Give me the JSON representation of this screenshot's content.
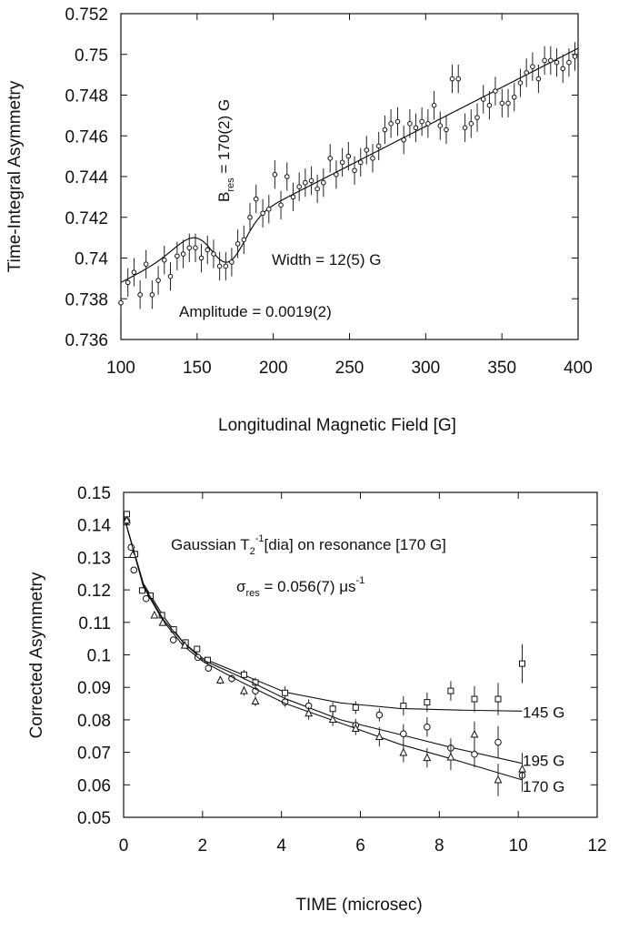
{
  "chart_data": [
    {
      "type": "scatter",
      "xlabel": "Longitudinal Magnetic Field [G]",
      "ylabel": "Time-Integral Asymmetry",
      "xlim": [
        100,
        400
      ],
      "ylim": [
        0.736,
        0.752
      ],
      "xticks": [
        "100",
        "150",
        "200",
        "250",
        "300",
        "350",
        "400"
      ],
      "yticks": [
        "0.736",
        "0.738",
        "0.74",
        "0.742",
        "0.744",
        "0.746",
        "0.748",
        "0.75",
        "0.752"
      ],
      "grid": false,
      "annotations": {
        "bres_main": "B",
        "bres_sub": "res",
        "bres_rest": " = 170(2) G",
        "width": "Width = 12(5) G",
        "amplitude": "Amplitude = 0.0019(2)"
      },
      "fit": {
        "model": "linear background with resonance dip",
        "baseline": [
          [
            100,
            0.7388
          ],
          [
            400,
            0.7503
          ]
        ],
        "center": 170,
        "width": 12,
        "amplitude": 0.0019
      },
      "error": 0.0007,
      "points": [
        [
          100,
          0.7378
        ],
        [
          104.6,
          0.7388
        ],
        [
          108.6,
          0.7393
        ],
        [
          112.6,
          0.7382
        ],
        [
          116.5,
          0.7397
        ],
        [
          120.5,
          0.7382
        ],
        [
          124.5,
          0.7389
        ],
        [
          128.5,
          0.7399
        ],
        [
          132.5,
          0.7391
        ],
        [
          136.9,
          0.7401
        ],
        [
          140.9,
          0.7402
        ],
        [
          144.9,
          0.7405
        ],
        [
          148.9,
          0.7405
        ],
        [
          152.8,
          0.74
        ],
        [
          156.8,
          0.7404
        ],
        [
          160.8,
          0.7402
        ],
        [
          164.8,
          0.7396
        ],
        [
          168.8,
          0.7396
        ],
        [
          172.7,
          0.7398
        ],
        [
          176.7,
          0.7407
        ],
        [
          180.7,
          0.7409
        ],
        [
          184.7,
          0.742
        ],
        [
          188.7,
          0.7429
        ],
        [
          193.1,
          0.7422
        ],
        [
          197.1,
          0.7424
        ],
        [
          201,
          0.7441
        ],
        [
          205,
          0.7426
        ],
        [
          209,
          0.744
        ],
        [
          213,
          0.743
        ],
        [
          217,
          0.7435
        ],
        [
          221,
          0.7437
        ],
        [
          225,
          0.7438
        ],
        [
          228.9,
          0.7434
        ],
        [
          232.9,
          0.7437
        ],
        [
          237.3,
          0.7449
        ],
        [
          241.3,
          0.7441
        ],
        [
          245.3,
          0.7447
        ],
        [
          249.3,
          0.745
        ],
        [
          253.3,
          0.7443
        ],
        [
          257.3,
          0.7447
        ],
        [
          261.2,
          0.7453
        ],
        [
          265.2,
          0.7449
        ],
        [
          269.2,
          0.7455
        ],
        [
          273.2,
          0.7463
        ],
        [
          277.2,
          0.7466
        ],
        [
          281.6,
          0.7467
        ],
        [
          285.6,
          0.7458
        ],
        [
          289.6,
          0.7466
        ],
        [
          293.5,
          0.7464
        ],
        [
          297.5,
          0.7467
        ],
        [
          301.5,
          0.7466
        ],
        [
          305.5,
          0.7475
        ],
        [
          309.5,
          0.7465
        ],
        [
          313.5,
          0.7463
        ],
        [
          317.4,
          0.7488
        ],
        [
          321.4,
          0.7488
        ],
        [
          325.8,
          0.7464
        ],
        [
          329.8,
          0.7466
        ],
        [
          333.8,
          0.7469
        ],
        [
          337.8,
          0.7478
        ],
        [
          341.8,
          0.7475
        ],
        [
          345.7,
          0.7482
        ],
        [
          350.1,
          0.7476
        ],
        [
          354.1,
          0.7476
        ],
        [
          358.1,
          0.7479
        ],
        [
          362.1,
          0.7486
        ],
        [
          366.1,
          0.7491
        ],
        [
          370.1,
          0.7494
        ],
        [
          374,
          0.7488
        ],
        [
          378,
          0.7497
        ],
        [
          382,
          0.7497
        ],
        [
          386,
          0.7496
        ],
        [
          390,
          0.7493
        ],
        [
          394,
          0.7496
        ],
        [
          397.9,
          0.7499
        ]
      ]
    },
    {
      "type": "scatter",
      "xlabel": "TIME (microsec)",
      "ylabel": "Corrected Asymmetry",
      "xlim": [
        0,
        12
      ],
      "ylim": [
        0.05,
        0.15
      ],
      "xticks": [
        "0",
        "2",
        "4",
        "6",
        "8",
        "10",
        "12"
      ],
      "yticks": [
        "0.05",
        "0.06",
        "0.07",
        "0.08",
        "0.09",
        "0.1",
        "0.11",
        "0.12",
        "0.13",
        "0.14",
        "0.15"
      ],
      "grid": false,
      "annotations": {
        "title_a": "Gaussian T",
        "title_sub": "2",
        "title_sup": "-1",
        "title_b": "[dia] on resonance [170 G]",
        "sigma": "σ",
        "sigma_sub": "res",
        "sigma_rest": " = 0.056(7) μs",
        "sigma_sup": "-1"
      },
      "series": [
        {
          "name": "145 G",
          "marker": "square",
          "points": [
            [
              0.08,
              0.1433,
              0.001
            ],
            [
              0.29,
              0.131,
              0.001
            ],
            [
              0.47,
              0.1198,
              0.001
            ],
            [
              0.68,
              0.1182,
              0.001
            ],
            [
              0.97,
              0.1122,
              0.001
            ],
            [
              1.27,
              0.1078,
              0.001
            ],
            [
              1.57,
              0.1038,
              0.001
            ],
            [
              1.86,
              0.1018,
              0.001
            ],
            [
              2.13,
              0.0984,
              0.001
            ],
            [
              3.05,
              0.0939,
              0.0015
            ],
            [
              3.34,
              0.0915,
              0.0015
            ],
            [
              4.09,
              0.0883,
              0.002
            ],
            [
              5.3,
              0.0834,
              0.002
            ],
            [
              5.88,
              0.0838,
              0.002
            ],
            [
              7.09,
              0.0843,
              0.003
            ],
            [
              7.69,
              0.0854,
              0.003
            ],
            [
              8.29,
              0.0889,
              0.003
            ],
            [
              8.89,
              0.0864,
              0.004
            ],
            [
              9.49,
              0.0864,
              0.005
            ],
            [
              10.1,
              0.0973,
              0.006
            ]
          ],
          "fit": [
            [
              0,
              0.143
            ],
            [
              0.5,
              0.122
            ],
            [
              1,
              0.112
            ],
            [
              1.5,
              0.104
            ],
            [
              2,
              0.099
            ],
            [
              3,
              0.094
            ],
            [
              4.1,
              0.0885
            ],
            [
              5.5,
              0.0852
            ],
            [
              7,
              0.0835
            ],
            [
              8.5,
              0.083
            ],
            [
              10.1,
              0.0827
            ]
          ]
        },
        {
          "name": "195 G",
          "marker": "circle",
          "points": [
            [
              0.08,
              0.1412,
              0.001
            ],
            [
              0.19,
              0.1331,
              0.001
            ],
            [
              0.26,
              0.1261,
              0.001
            ],
            [
              0.57,
              0.1173,
              0.001
            ],
            [
              1.26,
              0.1046,
              0.001
            ],
            [
              1.88,
              0.0992,
              0.001
            ],
            [
              2.15,
              0.0959,
              0.001
            ],
            [
              2.74,
              0.0927,
              0.0012
            ],
            [
              3.34,
              0.0889,
              0.0015
            ],
            [
              4.09,
              0.0855,
              0.0015
            ],
            [
              4.69,
              0.0843,
              0.002
            ],
            [
              5.88,
              0.0783,
              0.002
            ],
            [
              6.48,
              0.0815,
              0.002
            ],
            [
              7.09,
              0.0757,
              0.003
            ],
            [
              7.69,
              0.0778,
              0.003
            ],
            [
              8.29,
              0.0713,
              0.003
            ],
            [
              8.89,
              0.0694,
              0.004
            ],
            [
              9.49,
              0.0731,
              0.005
            ],
            [
              10.1,
              0.0629,
              0.005
            ]
          ],
          "fit": [
            [
              0,
              0.143
            ],
            [
              0.5,
              0.1215
            ],
            [
              1,
              0.111
            ],
            [
              1.5,
              0.104
            ],
            [
              2,
              0.0985
            ],
            [
              3,
              0.093
            ],
            [
              4.1,
              0.0865
            ],
            [
              5.5,
              0.08
            ],
            [
              7,
              0.0755
            ],
            [
              8.3,
              0.0715
            ],
            [
              10.1,
              0.0666
            ]
          ]
        },
        {
          "name": "170 G",
          "marker": "triangle",
          "points": [
            [
              0.08,
              0.1414,
              0.001
            ],
            [
              0.23,
              0.1308,
              0.001
            ],
            [
              0.78,
              0.1122,
              0.001
            ],
            [
              0.99,
              0.1099,
              0.001
            ],
            [
              1.55,
              0.1029,
              0.001
            ],
            [
              2.45,
              0.0922,
              0.0012
            ],
            [
              3.05,
              0.0889,
              0.0015
            ],
            [
              3.34,
              0.0857,
              0.0015
            ],
            [
              4.69,
              0.082,
              0.002
            ],
            [
              5.3,
              0.0801,
              0.002
            ],
            [
              5.88,
              0.0773,
              0.002
            ],
            [
              6.48,
              0.0748,
              0.003
            ],
            [
              7.09,
              0.0699,
              0.003
            ],
            [
              7.69,
              0.0683,
              0.003
            ],
            [
              8.29,
              0.0685,
              0.004
            ],
            [
              8.89,
              0.0755,
              0.004
            ],
            [
              9.49,
              0.0615,
              0.005
            ],
            [
              10.1,
              0.0648,
              0.005
            ]
          ],
          "fit": [
            [
              0,
              0.143
            ],
            [
              0.5,
              0.121
            ],
            [
              1,
              0.1105
            ],
            [
              1.5,
              0.103
            ],
            [
              2,
              0.098
            ],
            [
              3,
              0.0915
            ],
            [
              4.1,
              0.085
            ],
            [
              5.5,
              0.079
            ],
            [
              7,
              0.0725
            ],
            [
              8.3,
              0.068
            ],
            [
              10.1,
              0.0615
            ]
          ]
        }
      ]
    }
  ]
}
